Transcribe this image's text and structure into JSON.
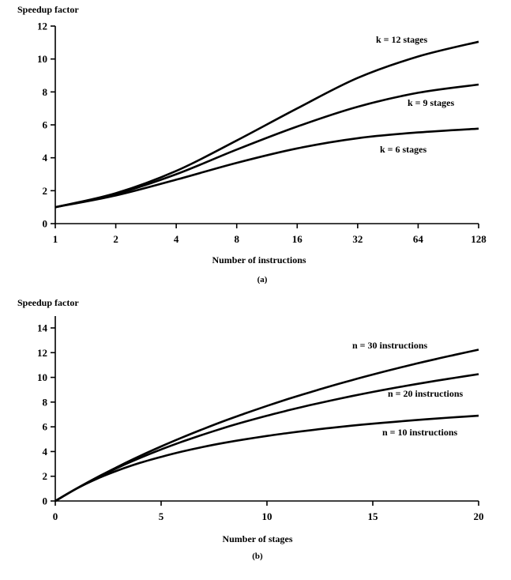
{
  "chart_data": [
    {
      "type": "line",
      "ylabel": "Speedup factor",
      "xlabel": "Number of instructions",
      "caption": "(a)",
      "x_scale": "log2",
      "x_ticks": [
        1,
        2,
        4,
        8,
        16,
        32,
        64,
        128
      ],
      "y_ticks": [
        0,
        2,
        4,
        6,
        8,
        10,
        12
      ],
      "xlim": [
        1,
        128
      ],
      "ylim": [
        0,
        12
      ],
      "grid": false,
      "series": [
        {
          "name": "k = 12 stages",
          "x": [
            1,
            2,
            4,
            8,
            16,
            32,
            64,
            128
          ],
          "y": [
            1.0,
            1.85,
            3.2,
            5.05,
            7.0,
            8.85,
            10.15,
            11.05
          ]
        },
        {
          "name": "k = 9 stages",
          "x": [
            1,
            2,
            4,
            8,
            16,
            32,
            64,
            128
          ],
          "y": [
            1.0,
            1.8,
            3.0,
            4.5,
            5.9,
            7.1,
            7.95,
            8.45
          ]
        },
        {
          "name": "k = 6 stages",
          "x": [
            1,
            2,
            4,
            8,
            16,
            32,
            64,
            128
          ],
          "y": [
            1.0,
            1.71,
            2.67,
            3.69,
            4.57,
            5.19,
            5.54,
            5.77
          ]
        }
      ]
    },
    {
      "type": "line",
      "ylabel": "Speedup factor",
      "xlabel": "Number of stages",
      "caption": "(b)",
      "x_scale": "linear",
      "x_ticks": [
        0,
        5,
        10,
        15,
        20
      ],
      "y_ticks": [
        0,
        2,
        4,
        6,
        8,
        10,
        12,
        14
      ],
      "xlim": [
        0,
        20
      ],
      "ylim": [
        0,
        15
      ],
      "grid": false,
      "series": [
        {
          "name": "n = 30  instructions",
          "x": [
            0,
            1,
            2,
            3,
            4,
            5,
            6,
            7,
            8,
            9,
            10,
            11,
            12,
            13,
            14,
            15,
            16,
            17,
            18,
            19,
            20
          ],
          "y": [
            0,
            1.0,
            1.94,
            2.81,
            3.64,
            4.41,
            5.14,
            5.83,
            6.49,
            7.1,
            7.69,
            8.25,
            8.78,
            9.29,
            9.77,
            10.23,
            10.67,
            11.09,
            11.49,
            11.87,
            12.24
          ]
        },
        {
          "name": "n = 20  instructions",
          "x": [
            0,
            1,
            2,
            3,
            4,
            5,
            6,
            7,
            8,
            9,
            10,
            11,
            12,
            13,
            14,
            15,
            16,
            17,
            18,
            19,
            20
          ],
          "y": [
            0,
            1.0,
            1.9,
            2.73,
            3.48,
            4.17,
            4.8,
            5.38,
            5.93,
            6.43,
            6.9,
            7.33,
            7.74,
            8.12,
            8.48,
            8.82,
            9.14,
            9.44,
            9.73,
            10.0,
            10.26
          ]
        },
        {
          "name": "n = 10  instructions",
          "x": [
            0,
            1,
            2,
            3,
            4,
            5,
            6,
            7,
            8,
            9,
            10,
            11,
            12,
            13,
            14,
            15,
            16,
            17,
            18,
            19,
            20
          ],
          "y": [
            0,
            1.0,
            1.82,
            2.5,
            3.08,
            3.57,
            4.0,
            4.38,
            4.71,
            5.0,
            5.26,
            5.5,
            5.71,
            5.91,
            6.09,
            6.25,
            6.4,
            6.54,
            6.67,
            6.79,
            6.9
          ]
        }
      ]
    }
  ]
}
